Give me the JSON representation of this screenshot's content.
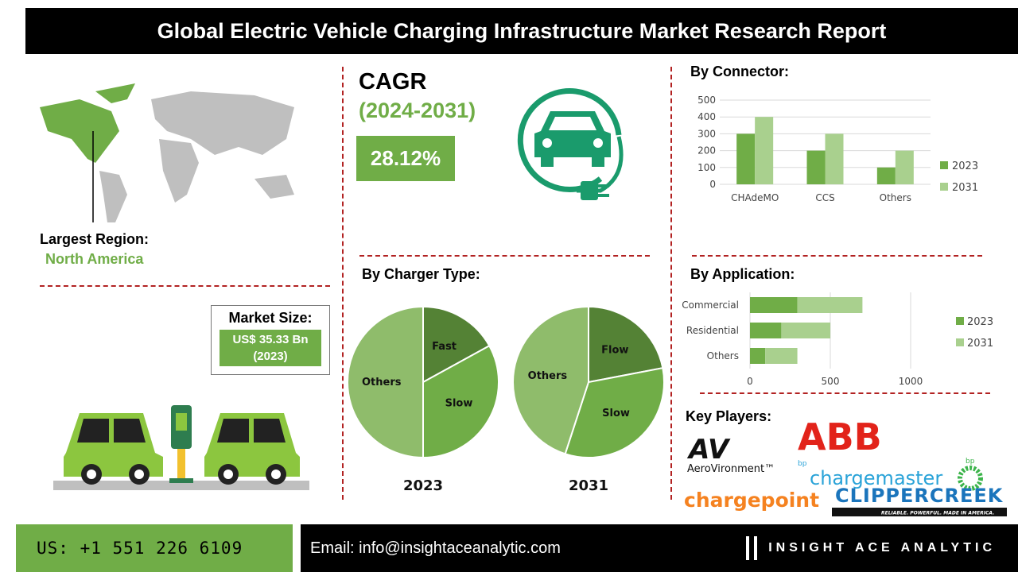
{
  "title": "Global Electric Vehicle Charging Infrastructure Market Research Report",
  "region": {
    "label": "Largest Region:",
    "value": "North America"
  },
  "market": {
    "label": "Market Size:",
    "value": "US$ 35.33 Bn",
    "year": "(2023)"
  },
  "cagr": {
    "label": "CAGR",
    "period": "(2024-2031)",
    "value": "28.12%"
  },
  "colors": {
    "dark": "#5b8f3a",
    "mid": "#70ad47",
    "light": "#a9d08e",
    "accent": "#b22222"
  },
  "chart_data": [
    {
      "type": "bar",
      "title": "By Connector:",
      "categories": [
        "CHAdeMO",
        "CCS",
        "Others"
      ],
      "series": [
        {
          "name": "2023",
          "values": [
            300,
            200,
            100
          ]
        },
        {
          "name": "2031",
          "values": [
            400,
            300,
            200
          ]
        }
      ],
      "ylim": [
        0,
        500
      ],
      "yticks": [
        "0",
        "100",
        "200",
        "300",
        "400",
        "500"
      ],
      "legend": "right",
      "grid": true
    },
    {
      "type": "bar",
      "orientation": "horizontal-stacked",
      "title": "By Application:",
      "categories": [
        "Commercial",
        "Residential",
        "Others"
      ],
      "series": [
        {
          "name": "2023",
          "values": [
            295,
            195,
            95
          ]
        },
        {
          "name": "2031",
          "values": [
            405,
            305,
            200
          ]
        }
      ],
      "xlim": [
        0,
        1000
      ],
      "xticks": [
        "0",
        "500",
        "1000"
      ],
      "legend": "right",
      "grid": true
    },
    {
      "type": "pie",
      "title": "By Charger Type:",
      "year": "2023",
      "labels": [
        "Fast",
        "Slow",
        "Others"
      ],
      "values": [
        17,
        33,
        50
      ]
    },
    {
      "type": "pie",
      "title": "By Charger Type:",
      "year": "2031",
      "labels": [
        "Flow",
        "Slow",
        "Others"
      ],
      "values": [
        22,
        33,
        45
      ]
    }
  ],
  "players": {
    "label": "Key Players:",
    "logos": [
      "AV",
      "AeroVironment™",
      "ABB",
      "bp",
      "chargemaster",
      "bp",
      "chargepoint",
      "CLIPPERCREEK",
      "RELIABLE. POWERFUL. MADE IN AMERICA."
    ]
  },
  "footer": {
    "phone": "US: +1 551 226 6109",
    "email": "Email: info@insightaceanalytic.com",
    "brand": "INSIGHT ACE ANALYTIC"
  }
}
